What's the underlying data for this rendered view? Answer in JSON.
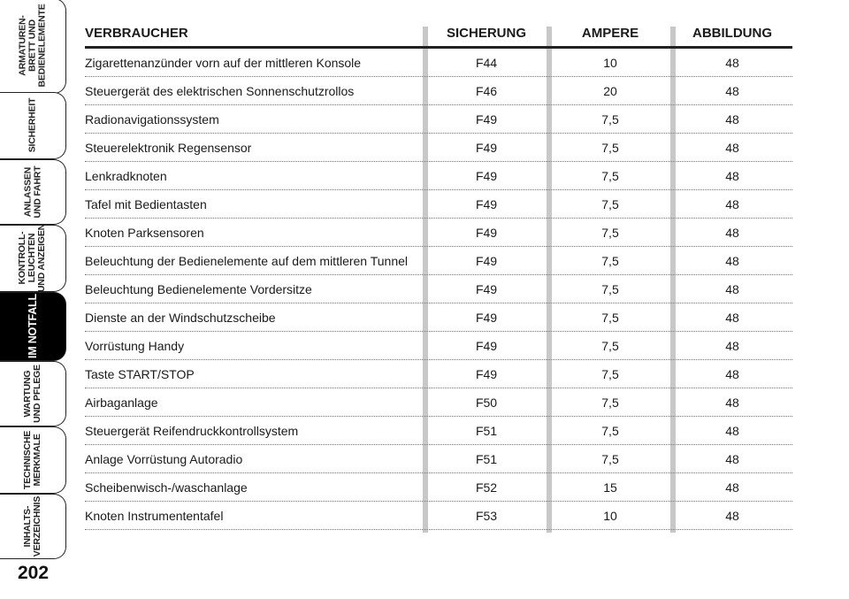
{
  "sidebar": {
    "tabs": [
      {
        "label": "ARMATUREN-\nBRETT UND\nBEDIENELEMENTE",
        "active": false
      },
      {
        "label": "SICHERHEIT",
        "active": false
      },
      {
        "label": "ANLASSEN\nUND FAHRT",
        "active": false
      },
      {
        "label": "KONTROLL-\nLEUCHTEN\nUND ANZEIGEN",
        "active": false
      },
      {
        "label": "IM NOTFALL",
        "active": true
      },
      {
        "label": "WARTUNG\nUND PFLEGE",
        "active": false
      },
      {
        "label": "TECHNISCHE\nMERKMALE",
        "active": false
      },
      {
        "label": "INHALTS-\nVERZEICHNIS",
        "active": false
      }
    ],
    "page_number": "202"
  },
  "table": {
    "headers": {
      "consumer": "VERBRAUCHER",
      "fuse": "SICHERUNG",
      "ampere": "AMPERE",
      "figure": "ABBILDUNG"
    },
    "rows": [
      {
        "consumer": "Zigarettenanzünder vorn auf der mittleren Konsole",
        "fuse": "F44",
        "ampere": "10",
        "figure": "48"
      },
      {
        "consumer": "Steuergerät des elektrischen Sonnenschutzrollos",
        "fuse": "F46",
        "ampere": "20",
        "figure": "48"
      },
      {
        "consumer": "Radionavigationssystem",
        "fuse": "F49",
        "ampere": "7,5",
        "figure": "48"
      },
      {
        "consumer": "Steuerelektronik Regensensor",
        "fuse": "F49",
        "ampere": "7,5",
        "figure": "48"
      },
      {
        "consumer": "Lenkradknoten",
        "fuse": "F49",
        "ampere": "7,5",
        "figure": "48"
      },
      {
        "consumer": "Tafel mit Bedientasten",
        "fuse": "F49",
        "ampere": "7,5",
        "figure": "48"
      },
      {
        "consumer": "Knoten Parksensoren",
        "fuse": "F49",
        "ampere": "7,5",
        "figure": "48"
      },
      {
        "consumer": "Beleuchtung der Bedienelemente auf dem mittleren Tunnel",
        "fuse": "F49",
        "ampere": "7,5",
        "figure": "48"
      },
      {
        "consumer": "Beleuchtung Bedienelemente Vordersitze",
        "fuse": "F49",
        "ampere": "7,5",
        "figure": "48"
      },
      {
        "consumer": "Dienste an der Windschutzscheibe",
        "fuse": "F49",
        "ampere": "7,5",
        "figure": "48"
      },
      {
        "consumer": "Vorrüstung Handy",
        "fuse": "F49",
        "ampere": "7,5",
        "figure": "48"
      },
      {
        "consumer": "Taste START/STOP",
        "fuse": "F49",
        "ampere": "7,5",
        "figure": "48"
      },
      {
        "consumer": "Airbaganlage",
        "fuse": "F50",
        "ampere": "7,5",
        "figure": "48"
      },
      {
        "consumer": "Steuergerät Reifendruckkontrollsystem",
        "fuse": "F51",
        "ampere": "7,5",
        "figure": "48"
      },
      {
        "consumer": "Anlage Vorrüstung Autoradio",
        "fuse": "F51",
        "ampere": "7,5",
        "figure": "48"
      },
      {
        "consumer": "Scheibenwisch-/waschanlage",
        "fuse": "F52",
        "ampere": "15",
        "figure": "48"
      },
      {
        "consumer": "Knoten Instrumententafel",
        "fuse": "F53",
        "ampere": "10",
        "figure": "48"
      }
    ]
  }
}
